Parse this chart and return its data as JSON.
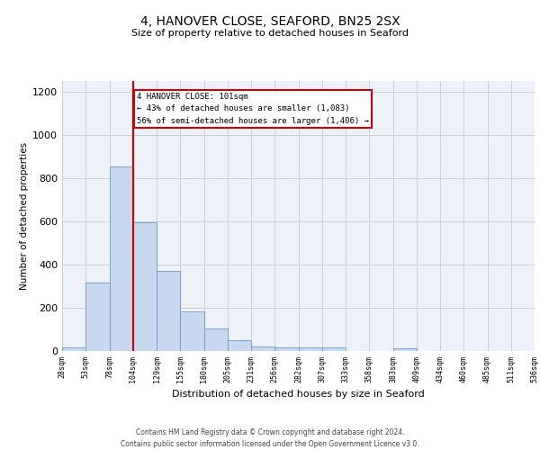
{
  "title_line1": "4, HANOVER CLOSE, SEAFORD, BN25 2SX",
  "title_line2": "Size of property relative to detached houses in Seaford",
  "xlabel": "Distribution of detached houses by size in Seaford",
  "ylabel": "Number of detached properties",
  "bin_labels": [
    "28sqm",
    "53sqm",
    "78sqm",
    "104sqm",
    "129sqm",
    "155sqm",
    "180sqm",
    "205sqm",
    "231sqm",
    "256sqm",
    "282sqm",
    "307sqm",
    "333sqm",
    "358sqm",
    "383sqm",
    "409sqm",
    "434sqm",
    "460sqm",
    "485sqm",
    "511sqm",
    "536sqm"
  ],
  "bar_values": [
    15,
    315,
    855,
    595,
    370,
    185,
    105,
    48,
    22,
    18,
    18,
    15,
    0,
    0,
    12,
    0,
    0,
    0,
    0,
    0
  ],
  "bar_color": "#c8d8ee",
  "bar_edge_color": "#6699cc",
  "property_line_x": 3,
  "property_label": "4 HANOVER CLOSE: 101sqm",
  "annotation_line2": "← 43% of detached houses are smaller (1,083)",
  "annotation_line3": "56% of semi-detached houses are larger (1,406) →",
  "annotation_box_color": "#cc0000",
  "vline_color": "#cc0000",
  "ylim": [
    0,
    1250
  ],
  "yticks": [
    0,
    200,
    400,
    600,
    800,
    1000,
    1200
  ],
  "grid_color": "#c8d0dc",
  "background_color": "#eef2f8",
  "footer_line1": "Contains HM Land Registry data © Crown copyright and database right 2024.",
  "footer_line2": "Contains public sector information licensed under the Open Government Licence v3.0."
}
